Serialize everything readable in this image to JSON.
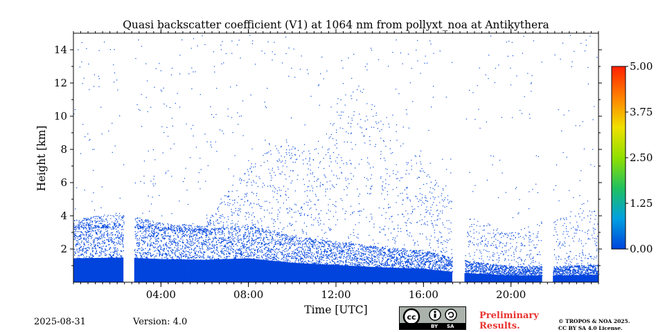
{
  "chart_data": {
    "type": "heatmap",
    "title": "Quasi backscatter coefficient (V1) at 1064 nm from pollyxt_noa at Antikythera",
    "xlabel": "Time [UTC]",
    "ylabel": "Height [km]",
    "x_unit": "hours UTC",
    "xlim": [
      0,
      24
    ],
    "ylim": [
      0,
      15
    ],
    "x_ticks": [
      4,
      8,
      12,
      16,
      20
    ],
    "x_tick_labels": [
      "04:00",
      "08:00",
      "12:00",
      "16:00",
      "20:00"
    ],
    "y_ticks": [
      2,
      4,
      6,
      8,
      10,
      12,
      14
    ],
    "y_tick_labels": [
      "2",
      "4",
      "6",
      "8",
      "10",
      "12",
      "14"
    ],
    "colorbar": {
      "range": [
        0.0,
        5.0
      ],
      "ticks": [
        0.0,
        1.25,
        2.5,
        3.75,
        5.0
      ],
      "tick_labels": [
        "0.00",
        "1.25",
        "2.50",
        "3.75",
        "5.00"
      ],
      "colormap": [
        "#0044dd",
        "#00a0e0",
        "#20c060",
        "#90e000",
        "#f0e000",
        "#ff8000",
        "#ff2000"
      ]
    },
    "missing_data_intervals": [
      [
        2.3,
        2.8
      ],
      [
        17.3,
        17.9
      ],
      [
        21.4,
        21.9
      ]
    ],
    "dense_layer_top_km": [
      [
        0,
        3.2
      ],
      [
        2.3,
        3.3
      ],
      [
        4,
        3.1
      ],
      [
        6,
        3.0
      ],
      [
        8,
        3.2
      ],
      [
        10,
        2.6
      ],
      [
        12,
        2.3
      ],
      [
        14,
        2.0
      ],
      [
        16,
        1.8
      ],
      [
        17.3,
        1.4
      ],
      [
        18,
        1.2
      ],
      [
        20,
        0.9
      ],
      [
        21.4,
        0.9
      ],
      [
        22,
        0.9
      ],
      [
        24,
        1.0
      ]
    ],
    "sparse_signal_top_km": [
      [
        0,
        3.8
      ],
      [
        2,
        4.2
      ],
      [
        4,
        3.6
      ],
      [
        6,
        3.4
      ],
      [
        7,
        5.5
      ],
      [
        9,
        8.5
      ],
      [
        11,
        8.0
      ],
      [
        13,
        12.0
      ],
      [
        14,
        10.5
      ],
      [
        16,
        7.0
      ],
      [
        18,
        4.0
      ],
      [
        20,
        3.0
      ],
      [
        22,
        4.0
      ],
      [
        24,
        4.5
      ]
    ]
  },
  "footer": {
    "date": "2025-08-31",
    "version": "Version: 4.0",
    "prelim_line1": "Preliminary",
    "prelim_line2": "Results.",
    "license_line1": "© TROPOS & NOA 2025.",
    "license_line2": "CC BY SA 4.0 License.",
    "cc_by": "BY",
    "cc_sa": "SA"
  }
}
